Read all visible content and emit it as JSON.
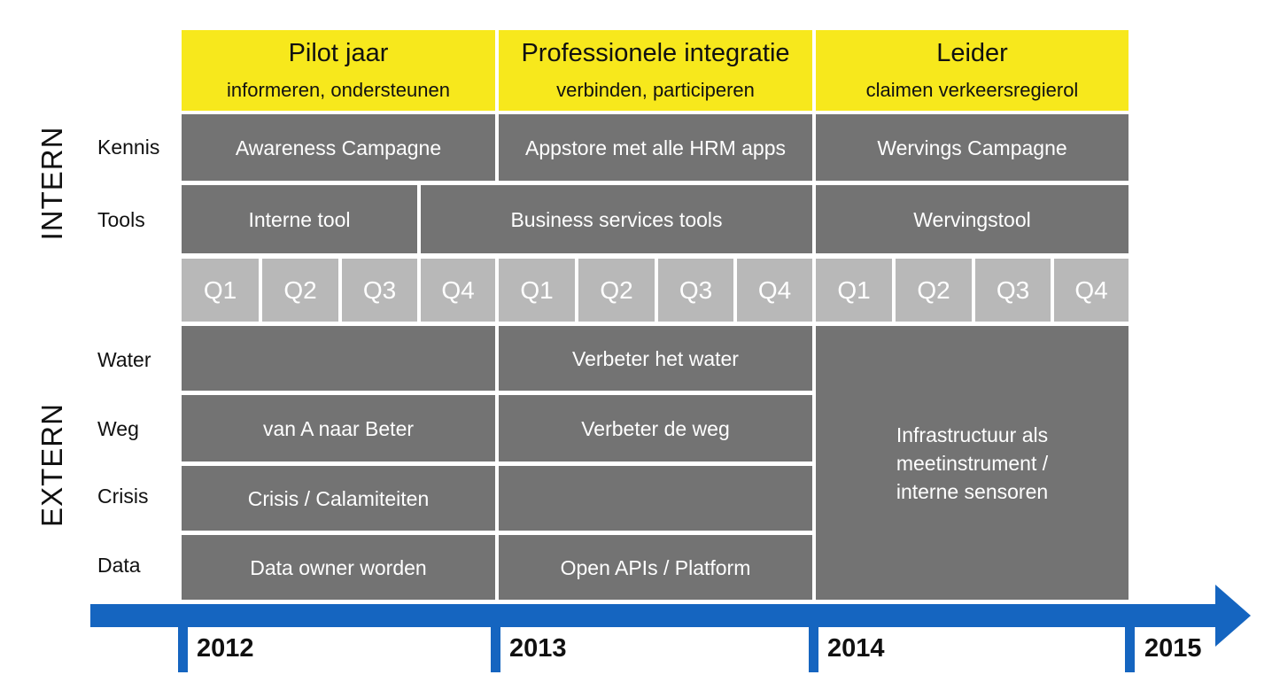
{
  "phases": [
    {
      "title": "Pilot jaar",
      "subtitle": "informeren, ondersteunen"
    },
    {
      "title": "Professionele integratie",
      "subtitle": "verbinden, participeren"
    },
    {
      "title": "Leider",
      "subtitle": "claimen verkeersregierol"
    }
  ],
  "sections": {
    "intern": "INTERN",
    "extern": "EXTERN"
  },
  "rows": {
    "kennis": "Kennis",
    "tools": "Tools",
    "water": "Water",
    "weg": "Weg",
    "crisis": "Crisis",
    "data": "Data"
  },
  "cells": {
    "kennis_2012": "Awareness Campagne",
    "kennis_2013": "Appstore met alle HRM apps",
    "kennis_2014": "Wervings Campagne",
    "tools_interne": "Interne tool",
    "tools_business": "Business services tools",
    "tools_2014": "Wervingstool",
    "water_2012": "",
    "water_2013": "Verbeter het water",
    "weg_2012": "van A naar Beter",
    "weg_2013": "Verbeter de weg",
    "crisis_2012": "Crisis / Calamiteiten",
    "crisis_2013": "",
    "data_2012": "Data owner worden",
    "data_2013": "Open APIs / Platform",
    "extern_2014": "Infrastructuur als meetinstrument / interne sensoren"
  },
  "quarters": [
    "Q1",
    "Q2",
    "Q3",
    "Q4",
    "Q1",
    "Q2",
    "Q3",
    "Q4",
    "Q1",
    "Q2",
    "Q3",
    "Q4"
  ],
  "years": [
    "2012",
    "2013",
    "2014",
    "2015"
  ],
  "colors": {
    "phase": "#f7e81c",
    "cell": "#737373",
    "quarter": "#b8b8b8",
    "timeline": "#1565c0"
  }
}
